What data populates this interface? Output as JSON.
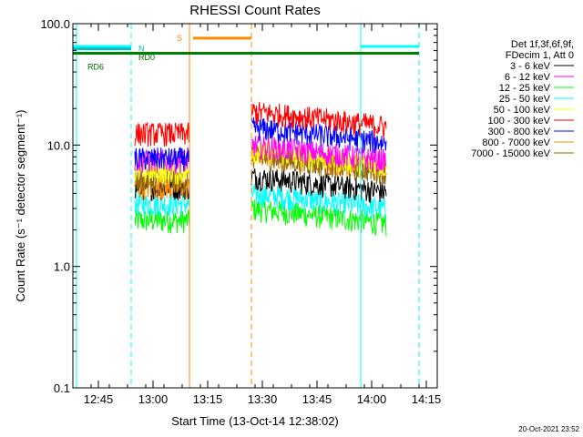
{
  "chart_data": {
    "type": "line",
    "title": "RHESSI Count Rates",
    "xlabel": "Start Time (13-Oct-14 12:38:02)",
    "ylabel": "Count Rate (s⁻¹ detector segment⁻¹)",
    "xlim": [
      "12:38",
      "14:18"
    ],
    "ylim": [
      0.1,
      100
    ],
    "yscale": "log",
    "x_ticks": [
      "12:45",
      "13:00",
      "13:15",
      "13:30",
      "13:45",
      "14:00",
      "14:15"
    ],
    "y_ticks": [
      "0.1",
      "1.0",
      "10.0",
      "100.0"
    ],
    "grid": false,
    "legend_placement": "right, outside plot",
    "legend_header": [
      "Det 1f,3f,6f,9f,",
      "FDecim 1, Att 0"
    ],
    "footer": "20-Oct-2021 23:52",
    "observing_intervals": [
      {
        "start": "12:55",
        "end": "13:10"
      },
      {
        "start": "13:27",
        "end": "14:04"
      }
    ],
    "series": [
      {
        "name": "3 - 6 keV",
        "color": "#000000",
        "values": [
          {
            "interval": 1,
            "level": 4.5
          },
          {
            "interval": 2,
            "level": 5.5
          }
        ]
      },
      {
        "name": "6 - 12 keV",
        "color": "#ff00ff",
        "values": [
          {
            "interval": 1,
            "level": 7.5
          },
          {
            "interval": 2,
            "level": 10.0
          }
        ]
      },
      {
        "name": "12 - 25 keV",
        "color": "#00ff00",
        "values": [
          {
            "interval": 1,
            "level": 2.4
          },
          {
            "interval": 2,
            "level": 3.0
          }
        ]
      },
      {
        "name": "25 - 50 keV",
        "color": "#00ffff",
        "values": [
          {
            "interval": 1,
            "level": 3.3
          },
          {
            "interval": 2,
            "level": 4.0
          }
        ]
      },
      {
        "name": "50 - 100 keV",
        "color": "#ffff00",
        "values": [
          {
            "interval": 1,
            "level": 6.0
          },
          {
            "interval": 2,
            "level": 9.0
          }
        ]
      },
      {
        "name": "100 - 300 keV",
        "color": "#ff0000",
        "values": [
          {
            "interval": 1,
            "level": 12.5
          },
          {
            "interval": 2,
            "level": 19.0
          }
        ]
      },
      {
        "name": "300 - 800 keV",
        "color": "#0000ff",
        "values": [
          {
            "interval": 1,
            "level": 7.8
          },
          {
            "interval": 2,
            "level": 14.0
          }
        ]
      },
      {
        "name": "800 - 7000 keV",
        "color": "#ff8c00",
        "values": [
          {
            "interval": 1,
            "level": 4.5
          },
          {
            "interval": 2,
            "level": 8.5
          }
        ]
      },
      {
        "name": "7000 - 15000 keV",
        "color": "#8b6914",
        "values": [
          {
            "interval": 1,
            "level": 5.2
          },
          {
            "interval": 2,
            "level": 8.0
          }
        ]
      }
    ],
    "annotations": [
      {
        "label": "N",
        "color": "#00c0c0",
        "y": 62,
        "bar_start": "12:38",
        "bar_end": "12:54"
      },
      {
        "label": "RD0",
        "color": "#006400",
        "y": 53
      },
      {
        "label": "RD6",
        "color": "#006400",
        "y": 44
      },
      {
        "label": "S",
        "color": "#ff8c00",
        "y": 76,
        "bar_start": "13:11",
        "bar_end": "13:27"
      }
    ],
    "vertical_markers": [
      {
        "time": "12:39",
        "color": "#00ffff",
        "style": "solid"
      },
      {
        "time": "12:54",
        "color": "#00ffff",
        "style": "dashed"
      },
      {
        "time": "13:10",
        "color": "#ff8c00",
        "style": "solid"
      },
      {
        "time": "13:27",
        "color": "#ff8c00",
        "style": "dashed"
      },
      {
        "time": "13:57",
        "color": "#00ffff",
        "style": "solid"
      },
      {
        "time": "14:13",
        "color": "#00ffff",
        "style": "dashed"
      }
    ],
    "horizontal_lines": [
      {
        "y": 57,
        "color": "#008000",
        "x_start": "12:38",
        "x_end": "14:13"
      },
      {
        "y": 65,
        "color": "#00ffff",
        "x_start": "12:38",
        "x_end": "12:54"
      },
      {
        "y": 65,
        "color": "#00ffff",
        "x_start": "13:57",
        "x_end": "14:13"
      }
    ]
  }
}
